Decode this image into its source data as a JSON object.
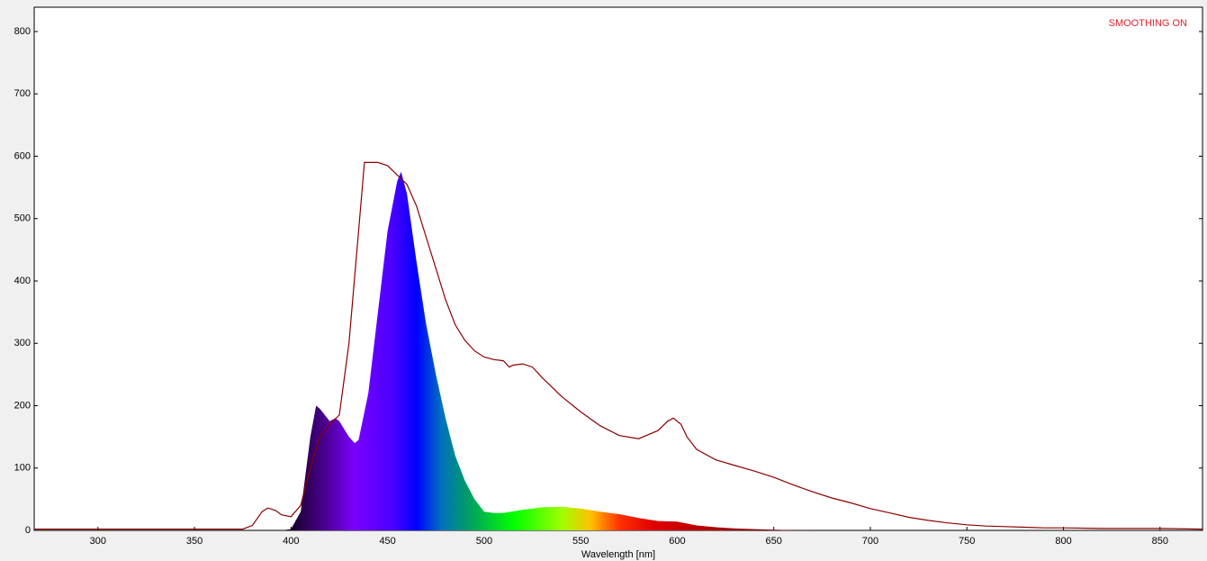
{
  "chart_data": {
    "type": "spectrum",
    "annotation": "SMOOTHING ON",
    "x_label": "Wavelength [nm]",
    "xlim": [
      267,
      872
    ],
    "ylim": [
      0,
      839
    ],
    "xticks": [
      300,
      350,
      400,
      450,
      500,
      550,
      600,
      650,
      700,
      750,
      800,
      850
    ],
    "yticks": [
      0,
      100,
      200,
      300,
      400,
      500,
      600,
      700,
      800
    ],
    "grid": false,
    "series": [
      {
        "fill": "spectrum",
        "x": [
          267,
          395,
          400,
          405,
          410,
          413,
          415,
          420,
          423,
          425,
          430,
          433,
          435,
          440,
          445,
          450,
          455,
          457,
          460,
          465,
          470,
          475,
          480,
          485,
          490,
          495,
          500,
          505,
          510,
          520,
          530,
          540,
          550,
          560,
          570,
          580,
          590,
          600,
          610,
          620,
          630,
          640,
          650,
          660,
          670,
          872
        ],
        "values": [
          0,
          0,
          2,
          30,
          150,
          200,
          195,
          175,
          180,
          175,
          150,
          140,
          145,
          220,
          350,
          480,
          560,
          575,
          540,
          430,
          330,
          250,
          180,
          120,
          80,
          50,
          30,
          28,
          28,
          33,
          37,
          38,
          35,
          30,
          26,
          20,
          15,
          14,
          8,
          5,
          3,
          2,
          1,
          0.5,
          0,
          0
        ]
      },
      {
        "color": "#8b0000",
        "x": [
          267,
          375,
          380,
          385,
          388,
          392,
          395,
          400,
          405,
          410,
          415,
          420,
          425,
          430,
          435,
          438,
          440,
          445,
          450,
          455,
          460,
          465,
          470,
          475,
          480,
          485,
          490,
          495,
          500,
          505,
          510,
          513,
          515,
          520,
          525,
          530,
          540,
          550,
          560,
          570,
          580,
          590,
          595,
          598,
          602,
          605,
          610,
          620,
          630,
          640,
          650,
          660,
          670,
          680,
          690,
          700,
          710,
          720,
          730,
          740,
          750,
          760,
          770,
          780,
          790,
          800,
          820,
          850,
          872
        ],
        "values": [
          2,
          2,
          8,
          30,
          36,
          32,
          25,
          22,
          40,
          100,
          150,
          170,
          185,
          300,
          480,
          590,
          590,
          590,
          585,
          570,
          555,
          520,
          470,
          420,
          370,
          330,
          305,
          288,
          278,
          274,
          272,
          262,
          265,
          267,
          262,
          245,
          215,
          190,
          168,
          152,
          147,
          160,
          175,
          180,
          170,
          150,
          130,
          113,
          104,
          95,
          85,
          73,
          62,
          52,
          44,
          35,
          28,
          21,
          16,
          12,
          9,
          7,
          6,
          5,
          4,
          4,
          3,
          3,
          2
        ]
      }
    ]
  }
}
